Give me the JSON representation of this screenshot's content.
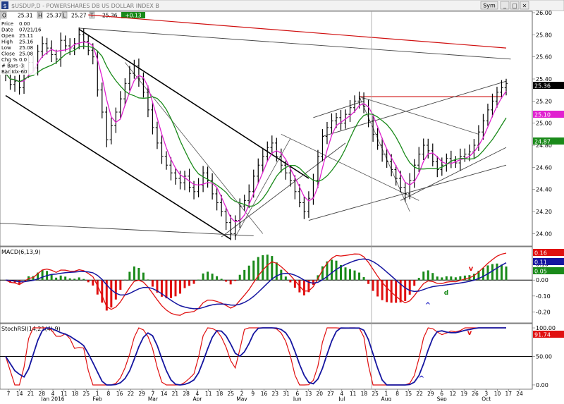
{
  "header": {
    "symbol": "$USDUP,D - POWERSHARES DB US DOLLAR INDEX B",
    "ohlc": {
      "open_label": "O",
      "open": "25.31",
      "high_label": "H",
      "high": "25.37",
      "low_label": "L",
      "low": "25.27",
      "close_label": "T",
      "close": "25.36",
      "change": "+0.13"
    },
    "sym_button": "Sym",
    "window_controls": [
      "_",
      "□",
      "×"
    ]
  },
  "info_box": [
    {
      "label": "Price",
      "value": "0.00"
    },
    {
      "label": "Date",
      "value": "07/21/16"
    },
    {
      "label": "Open",
      "value": "25.11"
    },
    {
      "label": "High",
      "value": "25.16"
    },
    {
      "label": "Low",
      "value": "25.08"
    },
    {
      "label": "Close",
      "value": "25.08"
    },
    {
      "label": "Chg %",
      "value": "0.0"
    },
    {
      "label": "# Bars",
      "value": "-3"
    },
    {
      "label": "Bar Idx",
      "value": "-60"
    }
  ],
  "x_axis": {
    "day_ticks": [
      "7",
      "14",
      "21",
      "28",
      "4",
      "11",
      "18",
      "25",
      "1",
      "8",
      "16",
      "22",
      "29",
      "7",
      "14",
      "21",
      "28",
      "4",
      "11",
      "18",
      "25",
      "2",
      "9",
      "16",
      "23",
      "31",
      "6",
      "13",
      "20",
      "27",
      "4",
      "11",
      "18",
      "25",
      "1",
      "8",
      "15",
      "22",
      "29",
      "6",
      "12",
      "19",
      "26",
      "3",
      "10",
      "17",
      "24"
    ],
    "month_labels": [
      "Jan 2016",
      "Feb",
      "Mar",
      "Apr",
      "May",
      "Jun",
      "Jul",
      "Aug",
      "Sep",
      "Oct"
    ]
  },
  "chart_data": [
    {
      "type": "ohlc",
      "title": "$USDUP,D - POWERSHARES DB US DOLLAR INDEX B",
      "ylim": [
        23.9,
        26.0
      ],
      "y_ticks": [
        "26.00",
        "25.80",
        "25.60",
        "25.40",
        "25.20",
        "25.00",
        "24.80",
        "24.60",
        "24.40",
        "24.20",
        "24.00"
      ],
      "closes": [
        25.45,
        25.35,
        25.38,
        25.32,
        25.48,
        25.55,
        25.5,
        25.65,
        25.72,
        25.68,
        25.62,
        25.58,
        25.75,
        25.7,
        25.68,
        25.72,
        25.8,
        25.74,
        25.66,
        25.6,
        25.3,
        25.1,
        24.85,
        24.98,
        25.1,
        25.22,
        25.36,
        25.45,
        25.52,
        25.4,
        25.28,
        25.12,
        24.96,
        24.82,
        24.7,
        24.62,
        24.55,
        24.5,
        24.46,
        24.52,
        24.42,
        24.38,
        24.44,
        24.55,
        24.48,
        24.36,
        24.28,
        24.2,
        24.1,
        24.0,
        24.12,
        24.25,
        24.3,
        24.38,
        24.52,
        24.62,
        24.7,
        24.78,
        24.82,
        24.7,
        24.62,
        24.55,
        24.48,
        24.38,
        24.28,
        24.2,
        24.32,
        24.48,
        24.7,
        24.88,
        24.96,
        25.02,
        25.05,
        25.0,
        25.08,
        25.14,
        25.2,
        25.22,
        25.15,
        25.02,
        24.9,
        24.8,
        24.72,
        24.65,
        24.58,
        24.5,
        24.42,
        24.36,
        24.48,
        24.62,
        24.72,
        24.8,
        24.75,
        24.65,
        24.58,
        24.62,
        24.68,
        24.66,
        24.64,
        24.7,
        24.72,
        24.74,
        24.8,
        24.92,
        25.02,
        25.12,
        25.2,
        25.28,
        25.32,
        25.36
      ],
      "ma_fast_color": "#e020d0",
      "ma_slow_color": "#1a8a1a",
      "price_label": "25.36",
      "ma_fast_label": "25.10",
      "ma_slow_label": "24.87",
      "resistance_level": 25.24
    },
    {
      "type": "macd",
      "title": "MACD(6,13,9)",
      "ylim": [
        -0.26,
        0.2
      ],
      "y_ticks": [
        "0.10",
        "0.00",
        "-0.10",
        "-0.20"
      ],
      "macd_label": "0.16",
      "signal_label": "0.11",
      "hist_label": "0.05",
      "markers": [
        {
          "text": "^",
          "color": "#1515c0",
          "where": "late-Aug"
        },
        {
          "text": "d",
          "color": "#1a8a1a",
          "where": "early-Sep"
        },
        {
          "text": "v",
          "color": "#e01010",
          "where": "late-Sep"
        }
      ]
    },
    {
      "type": "line",
      "title": "StochRSI(14,21(4),9)",
      "ylim": [
        -5,
        105
      ],
      "y_ticks": [
        "100.00",
        "50.00",
        "0.00"
      ],
      "value_label": "91.74",
      "markers": [
        {
          "text": "^",
          "color": "#1515c0",
          "where": "late-Aug"
        },
        {
          "text": "v",
          "color": "#e01010",
          "where": "late-Sep"
        }
      ]
    }
  ]
}
